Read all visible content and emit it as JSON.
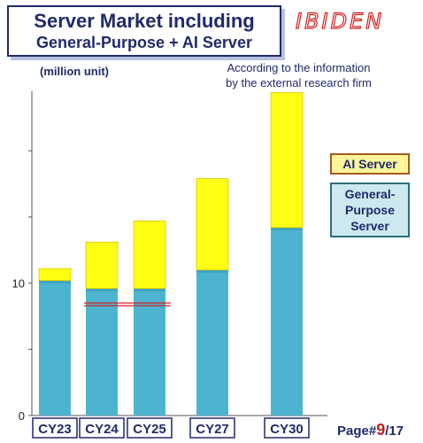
{
  "title": {
    "line1": "Server Market including",
    "line2": "General-Purpose + AI Server"
  },
  "brand": "IBIDEN",
  "unit_label": "(million unit)",
  "source_note": "According to the information\nby the external research firm",
  "legend": {
    "ai": "AI Server",
    "general": "General-\nPurpose\nServer"
  },
  "page": {
    "prefix": "Page#",
    "current": "9",
    "total": "/17"
  },
  "colors": {
    "ai_fill": "#ffff14",
    "ai_stroke": "#d9c500",
    "general_fill": "#4db4cf",
    "general_dark": "#3a9ab6",
    "axis": "#555555",
    "label_border": "#1f2a6b",
    "red_line": "#d42020"
  },
  "chart_data": {
    "type": "bar",
    "stacked": true,
    "categories": [
      "CY23",
      "CY24",
      "CY25",
      "CY27",
      "CY30"
    ],
    "series": [
      {
        "name": "General-Purpose Server",
        "values": [
          10.2,
          9.6,
          9.6,
          11.0,
          14.2
        ]
      },
      {
        "name": "AI Server",
        "values": [
          0.9,
          3.5,
          5.1,
          6.9,
          10.2
        ]
      }
    ],
    "yticks": [
      0,
      10
    ],
    "ylim": [
      0,
      24.5
    ],
    "reference_line": {
      "value": 8.4,
      "from_category": "CY24",
      "to_category": "CY25"
    }
  }
}
